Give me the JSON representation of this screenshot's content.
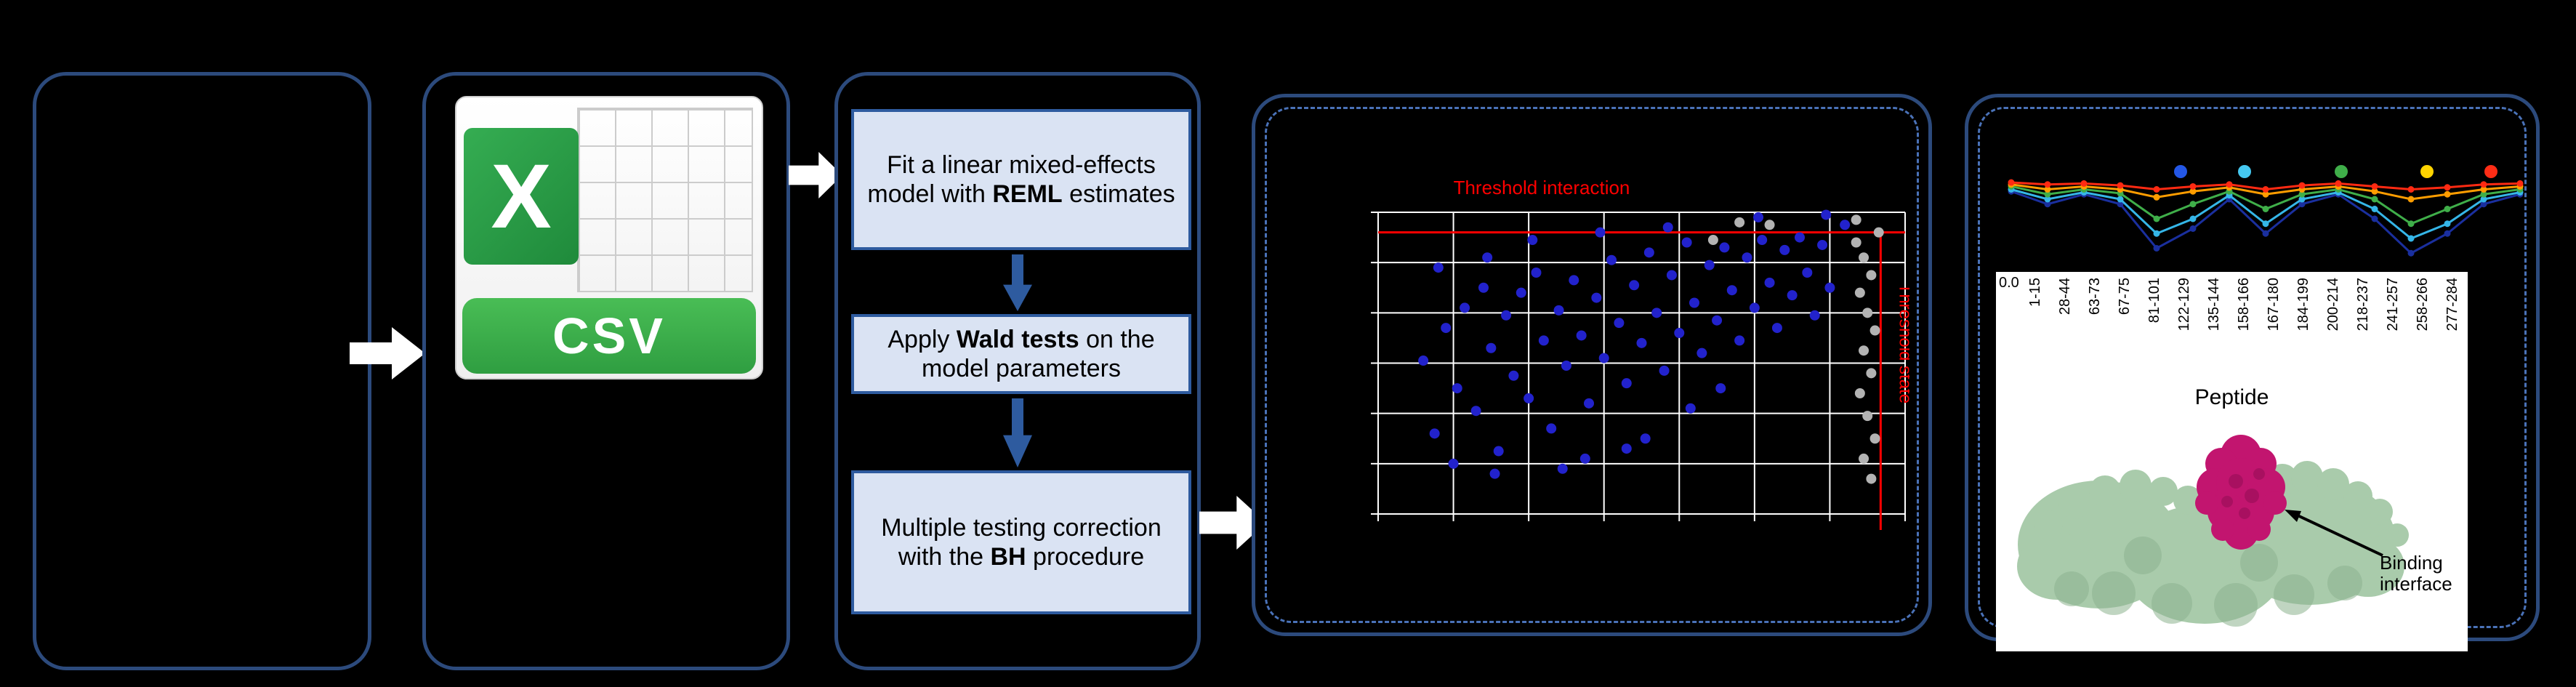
{
  "colors": {
    "background": "#000000",
    "panel_border": "#2c4a7c",
    "dashed_border": "#4a72b8",
    "step_fill": "#dae3f3",
    "step_border": "#2e5b9f",
    "flow_arrow": "#ffffff",
    "down_arrow": "#2e5b9f",
    "csv_banner_green": "#2f9e41",
    "excel_logo_green": "#1f8a3b",
    "threshold_red": "#ff0000",
    "point_blue": "#2222cc",
    "point_gray": "#b3b3b3",
    "protein_surface": "#a9cbab",
    "binding_patch": "#c2156f"
  },
  "csv_panel": {
    "icon_letter": "X",
    "icon_label": "CSV"
  },
  "steps": {
    "items": [
      {
        "pre": "Fit a linear mixed-effects model with ",
        "bold": "REML",
        "post": " estimates"
      },
      {
        "pre": "Apply ",
        "bold": "Wald tests",
        "post": " on the model parameters"
      },
      {
        "pre": "Multiple testing correction with the ",
        "bold": "BH",
        "post": " procedure"
      }
    ]
  },
  "chart_data": [
    {
      "id": "volcano",
      "type": "scatter",
      "title": "Threshold interaction",
      "vline_label": "Threshold state",
      "threshold_color": "#ff0000",
      "grid": true,
      "xlim": [
        0,
        14
      ],
      "ylim": [
        0,
        12
      ],
      "threshold_h_y": 11.2,
      "threshold_v_x": 13.35,
      "series": [
        {
          "name": "significant-points",
          "color": "#2222cc",
          "points": [
            [
              1.2,
              6.1
            ],
            [
              1.5,
              3.2
            ],
            [
              1.8,
              7.4
            ],
            [
              2.1,
              5.0
            ],
            [
              2.3,
              8.2
            ],
            [
              2.6,
              4.1
            ],
            [
              2.8,
              9.0
            ],
            [
              3.0,
              6.6
            ],
            [
              3.2,
              2.5
            ],
            [
              3.4,
              7.9
            ],
            [
              3.6,
              5.5
            ],
            [
              3.8,
              8.8
            ],
            [
              4.0,
              4.6
            ],
            [
              4.2,
              9.6
            ],
            [
              4.4,
              6.9
            ],
            [
              4.6,
              3.4
            ],
            [
              4.8,
              8.1
            ],
            [
              5.0,
              5.9
            ],
            [
              5.2,
              9.3
            ],
            [
              5.4,
              7.1
            ],
            [
              5.6,
              4.4
            ],
            [
              5.8,
              8.6
            ],
            [
              6.0,
              6.2
            ],
            [
              6.2,
              10.1
            ],
            [
              6.4,
              7.6
            ],
            [
              6.6,
              5.2
            ],
            [
              6.8,
              9.1
            ],
            [
              7.0,
              6.8
            ],
            [
              7.2,
              10.4
            ],
            [
              7.4,
              8.0
            ],
            [
              7.6,
              5.7
            ],
            [
              7.8,
              9.5
            ],
            [
              8.0,
              7.2
            ],
            [
              8.2,
              10.8
            ],
            [
              8.4,
              8.4
            ],
            [
              8.6,
              6.4
            ],
            [
              8.8,
              9.9
            ],
            [
              9.0,
              7.7
            ],
            [
              9.2,
              10.6
            ],
            [
              9.4,
              8.9
            ],
            [
              9.6,
              6.9
            ],
            [
              9.8,
              10.2
            ],
            [
              10.0,
              8.2
            ],
            [
              10.2,
              10.9
            ],
            [
              10.4,
              9.2
            ],
            [
              10.6,
              7.4
            ],
            [
              10.8,
              10.5
            ],
            [
              11.0,
              8.7
            ],
            [
              11.2,
              11.0
            ],
            [
              11.4,
              9.6
            ],
            [
              11.6,
              7.9
            ],
            [
              11.8,
              10.7
            ],
            [
              12.0,
              9.0
            ],
            [
              2.0,
              2.0
            ],
            [
              3.1,
              1.6
            ],
            [
              4.9,
              1.8
            ],
            [
              5.5,
              2.2
            ],
            [
              6.6,
              2.6
            ],
            [
              7.1,
              3.0
            ],
            [
              8.3,
              4.2
            ],
            [
              9.1,
              5.0
            ],
            [
              1.6,
              9.8
            ],
            [
              2.9,
              10.2
            ],
            [
              4.1,
              10.9
            ],
            [
              5.9,
              11.2
            ],
            [
              7.7,
              11.4
            ],
            [
              10.1,
              11.8
            ],
            [
              11.9,
              11.9
            ],
            [
              12.4,
              11.5
            ]
          ]
        },
        {
          "name": "nonsignificant-points",
          "color": "#b3b3b3",
          "points": [
            [
              12.7,
              10.8
            ],
            [
              12.9,
              10.2
            ],
            [
              13.1,
              9.5
            ],
            [
              12.8,
              8.8
            ],
            [
              13.0,
              8.0
            ],
            [
              13.2,
              7.3
            ],
            [
              12.9,
              6.5
            ],
            [
              13.1,
              5.6
            ],
            [
              12.8,
              4.8
            ],
            [
              13.0,
              3.9
            ],
            [
              13.2,
              3.0
            ],
            [
              12.9,
              2.2
            ],
            [
              13.1,
              1.4
            ],
            [
              9.6,
              11.6
            ],
            [
              10.4,
              11.5
            ],
            [
              8.9,
              10.9
            ],
            [
              13.3,
              11.2
            ],
            [
              12.7,
              11.7
            ]
          ]
        }
      ]
    },
    {
      "id": "uptake",
      "type": "line",
      "xlabel": "Peptide",
      "y_tick_label": "0.0",
      "categories": [
        "1-15",
        "28-44",
        "63-73",
        "67-75",
        "81-101",
        "122-129",
        "135-144",
        "158-166",
        "167-180",
        "184-199",
        "200-214",
        "218-237",
        "241-257",
        "258-266",
        "277-284"
      ],
      "legend_dots": [
        "#2457e6",
        "#45c8f0",
        "#3fae49",
        "#ffd400",
        "#ff2d16"
      ],
      "series": [
        {
          "name": "series-navy",
          "color": "#1a2f9e",
          "values": [
            0.88,
            0.75,
            0.85,
            0.75,
            0.3,
            0.5,
            0.8,
            0.45,
            0.75,
            0.85,
            0.6,
            0.25,
            0.45,
            0.75,
            0.85
          ]
        },
        {
          "name": "series-cyan",
          "color": "#35b6e8",
          "values": [
            0.9,
            0.8,
            0.87,
            0.8,
            0.45,
            0.6,
            0.84,
            0.55,
            0.8,
            0.87,
            0.7,
            0.4,
            0.55,
            0.8,
            0.87
          ]
        },
        {
          "name": "series-green",
          "color": "#3fae49",
          "values": [
            0.93,
            0.85,
            0.9,
            0.86,
            0.6,
            0.75,
            0.88,
            0.7,
            0.85,
            0.9,
            0.8,
            0.55,
            0.7,
            0.85,
            0.9
          ]
        },
        {
          "name": "series-orange",
          "color": "#ff9d00",
          "values": [
            0.95,
            0.9,
            0.93,
            0.9,
            0.82,
            0.88,
            0.92,
            0.85,
            0.9,
            0.93,
            0.88,
            0.8,
            0.85,
            0.9,
            0.93
          ]
        },
        {
          "name": "series-red",
          "color": "#ff2a12",
          "values": [
            0.97,
            0.95,
            0.96,
            0.94,
            0.9,
            0.93,
            0.95,
            0.9,
            0.94,
            0.96,
            0.93,
            0.9,
            0.92,
            0.95,
            0.96
          ]
        }
      ]
    }
  ],
  "right_panel": {
    "binding_label": "Binding interface"
  }
}
